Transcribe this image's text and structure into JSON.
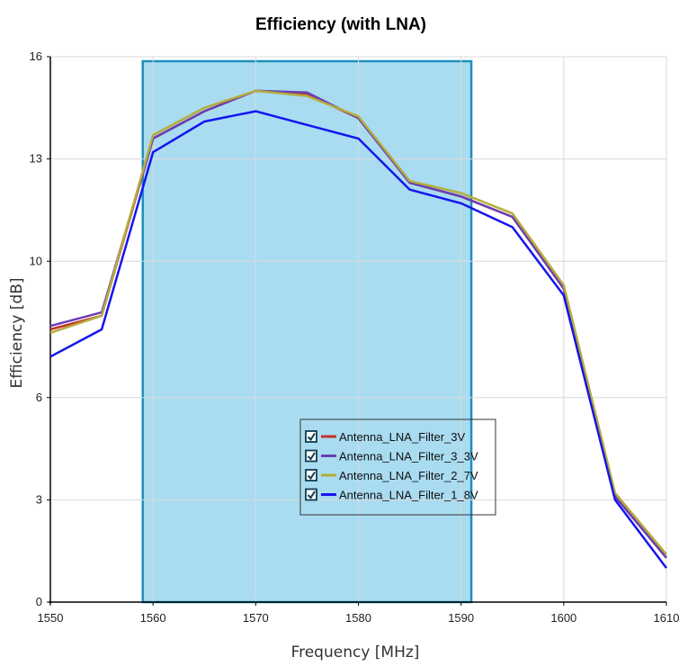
{
  "chart_data": {
    "type": "line",
    "title": "Efficiency (with LNA)",
    "xlabel": "Frequency [MHz]",
    "ylabel": "Efficiency [dB]",
    "xlim": [
      1550,
      1610
    ],
    "ylim": [
      0,
      16
    ],
    "xticks": [
      "1550",
      "1560",
      "1570",
      "1580",
      "1590",
      "1600",
      "1610"
    ],
    "yticks": [
      "0",
      "3",
      "6",
      "10",
      "13",
      "16"
    ],
    "grid": true,
    "legend_position": "inside, lower middle",
    "highlight_band": {
      "x_start": 1559,
      "x_end": 1591,
      "color": "#a9dcf1",
      "border_color": "#1f8fbf"
    },
    "x": [
      1550,
      1555,
      1560,
      1565,
      1570,
      1575,
      1580,
      1585,
      1590,
      1595,
      1600,
      1605,
      1610
    ],
    "series": [
      {
        "name": "Antenna_LNA_Filter_3V",
        "color": "#c0342c",
        "values": [
          8.0,
          8.4,
          13.6,
          14.4,
          15.0,
          14.9,
          14.2,
          12.3,
          11.9,
          11.3,
          9.2,
          3.1,
          1.3
        ]
      },
      {
        "name": "Antenna_LNA_Filter_3_3V",
        "color": "#6a3fb4",
        "values": [
          8.1,
          8.5,
          13.6,
          14.4,
          15.0,
          14.95,
          14.2,
          12.3,
          11.9,
          11.3,
          9.2,
          3.1,
          1.3
        ]
      },
      {
        "name": "Antenna_LNA_Filter_2_7V",
        "color": "#b5ad3a",
        "values": [
          7.9,
          8.4,
          13.7,
          14.5,
          15.0,
          14.85,
          14.25,
          12.35,
          12.0,
          11.4,
          9.3,
          3.2,
          1.4
        ]
      },
      {
        "name": "Antenna_LNA_Filter_1_8V",
        "color": "#1515ee",
        "values": [
          7.2,
          8.0,
          13.2,
          14.1,
          14.4,
          14.0,
          13.6,
          12.1,
          11.7,
          11.0,
          9.0,
          3.0,
          1.0
        ]
      }
    ]
  }
}
